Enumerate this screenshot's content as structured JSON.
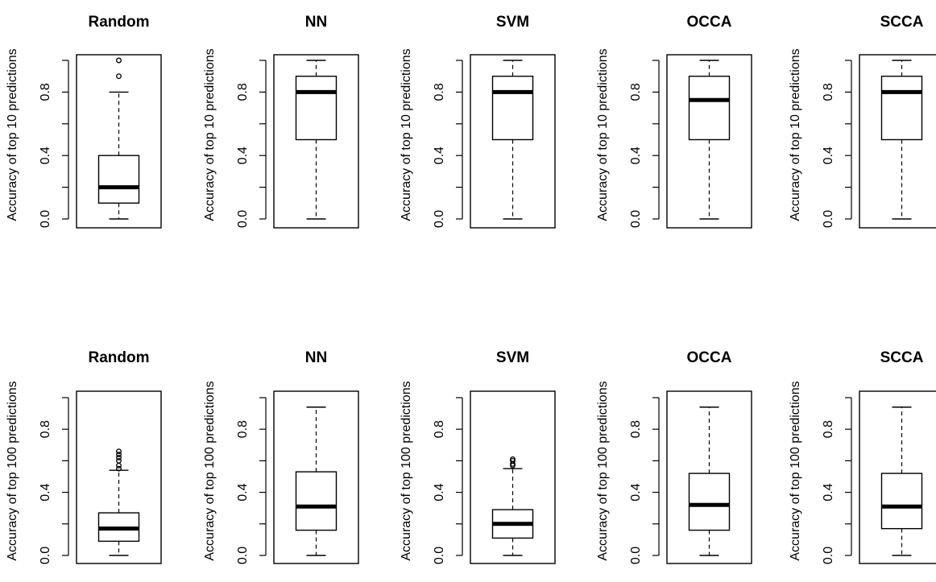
{
  "figure": {
    "rows": [
      {
        "ylabel": "Accuracy of top 10 predictions",
        "ylim": [
          0,
          1
        ],
        "ticks": [
          0.0,
          0.2,
          0.4,
          0.6,
          0.8,
          1.0
        ],
        "tick_labels": [
          "0.0",
          "0.4",
          "0.8"
        ],
        "tick_label_values": [
          0.0,
          0.4,
          0.8
        ]
      },
      {
        "ylabel": "Accuracy of top 100 predictions",
        "ylim": [
          0,
          1
        ],
        "ticks": [
          0.0,
          0.2,
          0.4,
          0.6,
          0.8,
          1.0
        ],
        "tick_labels": [
          "0.0",
          "0.4",
          "0.8"
        ],
        "tick_label_values": [
          0.0,
          0.4,
          0.8
        ]
      }
    ]
  },
  "chart_data": [
    {
      "type": "boxplot",
      "title": "Random",
      "ylabel": "Accuracy of top 10 predictions",
      "ylim": [
        0,
        1
      ],
      "stats": {
        "min": 0.0,
        "q1": 0.1,
        "median": 0.2,
        "q3": 0.4,
        "max": 0.8
      },
      "outliers": [
        0.9,
        1.0
      ]
    },
    {
      "type": "boxplot",
      "title": "NN",
      "ylabel": "Accuracy of top 10 predictions",
      "ylim": [
        0,
        1
      ],
      "stats": {
        "min": 0.0,
        "q1": 0.5,
        "median": 0.8,
        "q3": 0.9,
        "max": 1.0
      },
      "outliers": []
    },
    {
      "type": "boxplot",
      "title": "SVM",
      "ylabel": "Accuracy of top 10 predictions",
      "ylim": [
        0,
        1
      ],
      "stats": {
        "min": 0.0,
        "q1": 0.5,
        "median": 0.8,
        "q3": 0.9,
        "max": 1.0
      },
      "outliers": []
    },
    {
      "type": "boxplot",
      "title": "OCCA",
      "ylabel": "Accuracy of top 10 predictions",
      "ylim": [
        0,
        1
      ],
      "stats": {
        "min": 0.0,
        "q1": 0.5,
        "median": 0.75,
        "q3": 0.9,
        "max": 1.0
      },
      "outliers": []
    },
    {
      "type": "boxplot",
      "title": "SCCA",
      "ylabel": "Accuracy of top 10 predictions",
      "ylim": [
        0,
        1
      ],
      "stats": {
        "min": 0.0,
        "q1": 0.5,
        "median": 0.8,
        "q3": 0.9,
        "max": 1.0
      },
      "outliers": []
    },
    {
      "type": "boxplot",
      "title": "Random",
      "ylabel": "Accuracy of top 100 predictions",
      "ylim": [
        0,
        1
      ],
      "stats": {
        "min": 0.0,
        "q1": 0.09,
        "median": 0.17,
        "q3": 0.27,
        "max": 0.54
      },
      "outliers": [
        0.55,
        0.57,
        0.6,
        0.62,
        0.64,
        0.66
      ]
    },
    {
      "type": "boxplot",
      "title": "NN",
      "ylabel": "Accuracy of top 100 predictions",
      "ylim": [
        0,
        1
      ],
      "stats": {
        "min": 0.0,
        "q1": 0.16,
        "median": 0.31,
        "q3": 0.53,
        "max": 0.94
      },
      "outliers": []
    },
    {
      "type": "boxplot",
      "title": "SVM",
      "ylabel": "Accuracy of top 100 predictions",
      "ylim": [
        0,
        1
      ],
      "stats": {
        "min": 0.0,
        "q1": 0.11,
        "median": 0.2,
        "q3": 0.29,
        "max": 0.55
      },
      "outliers": [
        0.57,
        0.58,
        0.6,
        0.61
      ]
    },
    {
      "type": "boxplot",
      "title": "OCCA",
      "ylabel": "Accuracy of top 100 predictions",
      "ylim": [
        0,
        1
      ],
      "stats": {
        "min": 0.0,
        "q1": 0.16,
        "median": 0.32,
        "q3": 0.52,
        "max": 0.94
      },
      "outliers": []
    },
    {
      "type": "boxplot",
      "title": "SCCA",
      "ylabel": "Accuracy of top 100 predictions",
      "ylim": [
        0,
        1
      ],
      "stats": {
        "min": 0.0,
        "q1": 0.17,
        "median": 0.31,
        "q3": 0.52,
        "max": 0.94
      },
      "outliers": []
    }
  ]
}
